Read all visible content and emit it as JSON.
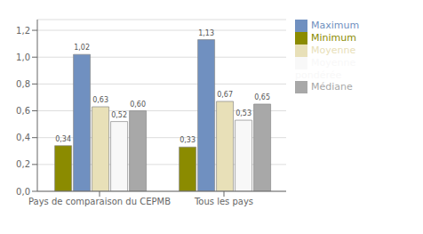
{
  "chart_data": {
    "type": "bar",
    "categories": [
      "Pays de comparaison du CEPMB",
      "Tous les pays"
    ],
    "series": [
      {
        "name": "Minimum",
        "color": "#8b8b00",
        "values": [
          0.34,
          0.33
        ],
        "value_labels": [
          "0,34",
          "0,33"
        ]
      },
      {
        "name": "Maximum",
        "color": "#7090c0",
        "values": [
          1.02,
          1.13
        ],
        "value_labels": [
          "1,02",
          "1,13"
        ]
      },
      {
        "name": "Moyenne",
        "color": "#e8e0b8",
        "values": [
          0.63,
          0.67
        ],
        "value_labels": [
          "0,63",
          "0,67"
        ]
      },
      {
        "name": "Moyenne pondérée",
        "color": "#f8f8f8",
        "values": [
          0.52,
          0.53
        ],
        "value_labels": [
          "0,52",
          "0,53"
        ]
      },
      {
        "name": "Médiane",
        "color": "#a8a8a8",
        "values": [
          0.6,
          0.65
        ],
        "value_labels": [
          "0,60",
          "0,65"
        ]
      }
    ],
    "ylim": [
      0,
      1.28
    ],
    "yticks": [
      {
        "value": 0,
        "label": "0,0"
      },
      {
        "value": 0.2,
        "label": "0,2"
      },
      {
        "value": 0.4,
        "label": "0,4"
      },
      {
        "value": 0.6,
        "label": "0,6"
      },
      {
        "value": 0.8,
        "label": "0,8"
      },
      {
        "value": 1.0,
        "label": "1,0"
      },
      {
        "value": 1.2,
        "label": "1,2"
      }
    ],
    "grid": true,
    "legend": "right",
    "data_labels": true
  }
}
